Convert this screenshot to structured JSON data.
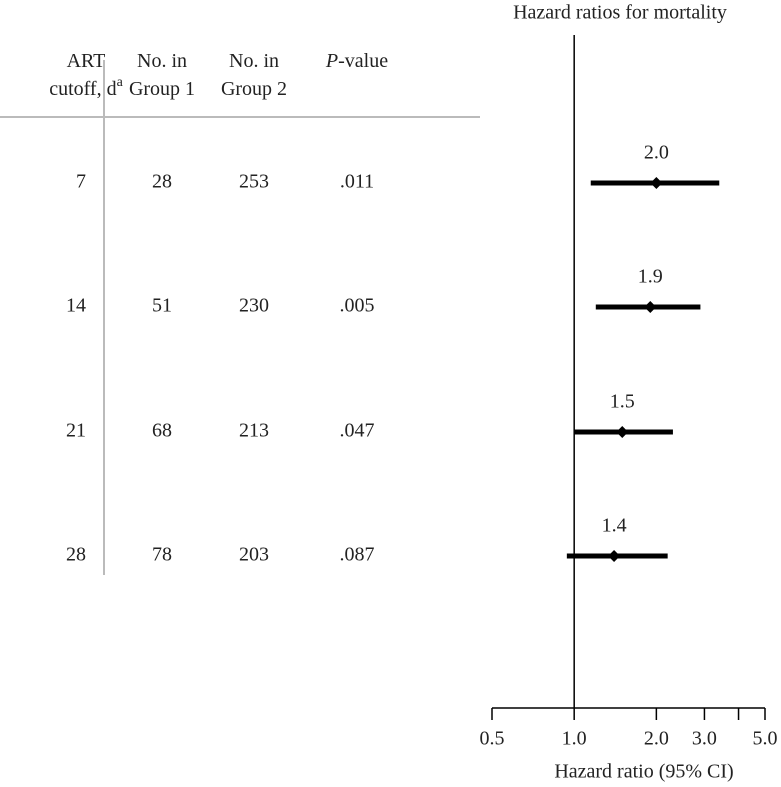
{
  "table": {
    "columns": [
      {
        "lines": [
          "ART",
          "cutoff, d"
        ],
        "sup": "a"
      },
      {
        "lines": [
          "No. in",
          "Group 1"
        ]
      },
      {
        "lines": [
          "No. in",
          "Group 2"
        ]
      },
      {
        "italic": "P",
        "text": "-value"
      }
    ],
    "rows": [
      [
        7,
        28,
        253,
        ".011"
      ],
      [
        14,
        51,
        230,
        ".005"
      ],
      [
        21,
        68,
        213,
        ".047"
      ],
      [
        28,
        78,
        203,
        ".087"
      ]
    ]
  },
  "chart_data": {
    "type": "forest",
    "title": "Hazard ratios for mortality",
    "xlabel": "Hazard ratio (95% CI)",
    "log_x": true,
    "reference_line": 1,
    "xlim": [
      0.5,
      5
    ],
    "xticks": [
      0.5,
      {
        "value": 1,
        "label": "1.0"
      },
      {
        "value": 2,
        "label": "2.0"
      },
      {
        "value": 3,
        "label": "3.0"
      },
      {
        "value": 4,
        "label": null
      },
      {
        "value": 5,
        "label": "5.0"
      }
    ],
    "color": "#000000",
    "estimates": [
      2.0,
      1.9,
      1.5,
      1.4
    ],
    "value_labels": [
      "2.0",
      "1.9",
      "1.5",
      "1.4"
    ],
    "lower": [
      1.15,
      1.2,
      1.0,
      0.94
    ],
    "upper": [
      3.4,
      2.9,
      2.3,
      2.2
    ]
  }
}
